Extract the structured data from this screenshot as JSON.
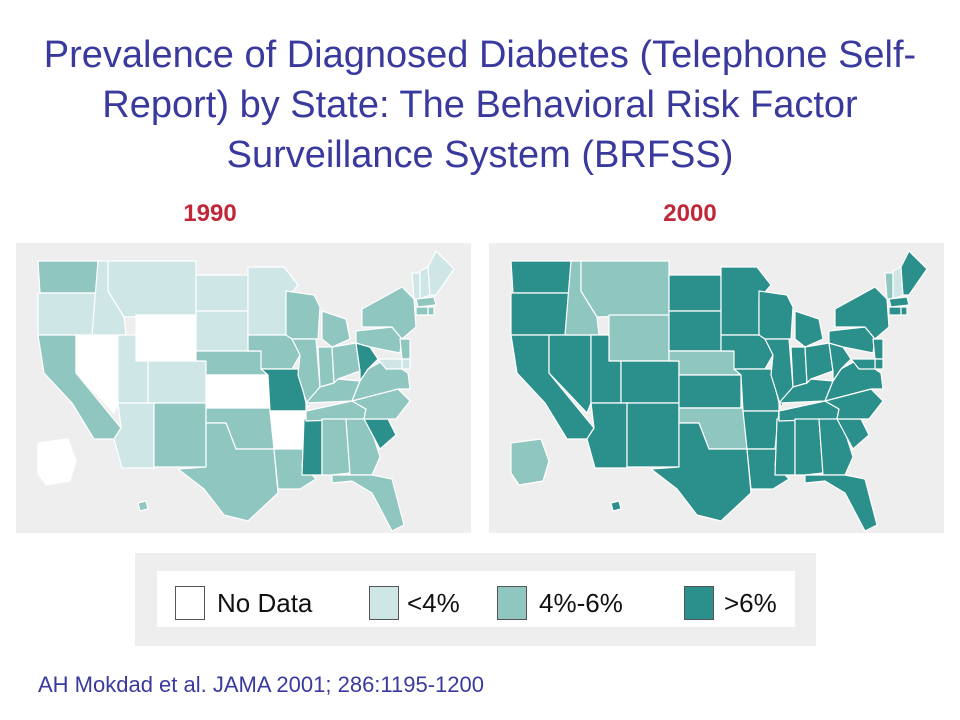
{
  "title": "Prevalence of Diagnosed Diabetes (Telephone Self-Report) by State:  The Behavioral Risk Factor Surveillance System (BRFSS)",
  "colors": {
    "title": "#3a3a9e",
    "year_label": "#c0283a",
    "panel_bg": "#eeeeee",
    "state_border": "#ffffff",
    "outline": "#555555"
  },
  "legend": [
    {
      "key": "none",
      "label": "No  Data",
      "color": "#ffffff"
    },
    {
      "key": "low",
      "label": "<4%",
      "color": "#cfe6e6"
    },
    {
      "key": "mid",
      "label": "4%-6%",
      "color": "#8fc6c0"
    },
    {
      "key": "high",
      "label": ">6%",
      "color": "#2b8f8b"
    }
  ],
  "maps": [
    {
      "year": "1990",
      "states": {
        "WA": "mid",
        "OR": "low",
        "CA": "mid",
        "NV": "none",
        "ID": "low",
        "MT": "low",
        "WY": "none",
        "UT": "low",
        "CO": "low",
        "AZ": "low",
        "NM": "mid",
        "ND": "low",
        "SD": "low",
        "NE": "mid",
        "KS": "none",
        "OK": "mid",
        "TX": "mid",
        "MN": "low",
        "IA": "mid",
        "MO": "high",
        "AR": "none",
        "LA": "mid",
        "WI": "mid",
        "IL": "mid",
        "MS": "high",
        "MI": "mid",
        "IN": "mid",
        "OH": "mid",
        "KY": "mid",
        "TN": "mid",
        "AL": "mid",
        "GA": "mid",
        "FL": "mid",
        "SC": "high",
        "NC": "mid",
        "VA": "mid",
        "WV": "high",
        "PA": "mid",
        "NY": "mid",
        "VT": "low",
        "NH": "low",
        "ME": "low",
        "MA": "mid",
        "CT": "mid",
        "RI": "mid",
        "NJ": "mid",
        "DE": "low",
        "MD": "low",
        "AK": "none",
        "HI": "mid"
      }
    },
    {
      "year": "2000",
      "states": {
        "WA": "high",
        "OR": "high",
        "CA": "high",
        "NV": "high",
        "ID": "mid",
        "MT": "mid",
        "WY": "mid",
        "UT": "high",
        "CO": "high",
        "AZ": "high",
        "NM": "high",
        "ND": "high",
        "SD": "high",
        "NE": "mid",
        "KS": "high",
        "OK": "mid",
        "TX": "high",
        "MN": "high",
        "IA": "high",
        "MO": "high",
        "AR": "high",
        "LA": "high",
        "WI": "high",
        "IL": "high",
        "MS": "high",
        "MI": "high",
        "IN": "high",
        "OH": "high",
        "KY": "high",
        "TN": "high",
        "AL": "high",
        "GA": "high",
        "FL": "high",
        "SC": "high",
        "NC": "high",
        "VA": "high",
        "WV": "high",
        "PA": "high",
        "NY": "high",
        "VT": "mid",
        "NH": "low",
        "ME": "high",
        "MA": "high",
        "CT": "high",
        "RI": "high",
        "NJ": "high",
        "DE": "high",
        "MD": "high",
        "AK": "mid",
        "HI": "high"
      }
    }
  ],
  "citation": "AH Mokdad et al.  JAMA 2001; 286:1195-1200"
}
